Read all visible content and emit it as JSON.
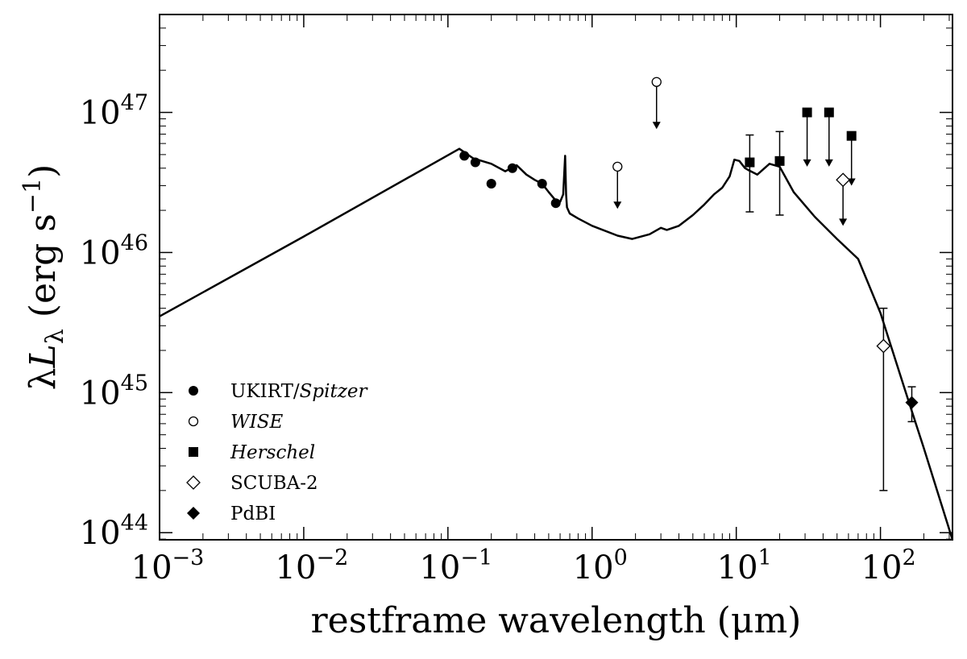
{
  "chart_data": {
    "type": "scatter",
    "title": "",
    "xlabel": "restframe wavelength (μm)",
    "ylabel": "λL_λ (erg s^-1)",
    "x_scale": "log",
    "y_scale": "log",
    "xlim": [
      0.001,
      316
    ],
    "ylim": [
      8.9e+43,
      5e+47
    ],
    "x_ticks": [
      {
        "base": "10",
        "exp": "-3",
        "value": 0.001
      },
      {
        "base": "10",
        "exp": "-2",
        "value": 0.01
      },
      {
        "base": "10",
        "exp": "-1",
        "value": 0.1
      },
      {
        "base": "10",
        "exp": "0",
        "value": 1
      },
      {
        "base": "10",
        "exp": "1",
        "value": 10
      },
      {
        "base": "10",
        "exp": "2",
        "value": 100
      }
    ],
    "y_ticks": [
      {
        "base": "10",
        "exp": "44",
        "value": 1e+44
      },
      {
        "base": "10",
        "exp": "45",
        "value": 1e+45
      },
      {
        "base": "10",
        "exp": "46",
        "value": 1e+46
      },
      {
        "base": "10",
        "exp": "47",
        "value": 1e+47
      }
    ],
    "grid": false,
    "legend_position": "lower-left",
    "legend": [
      {
        "label_prefix": "UKIRT/",
        "label_italic": "Spitzer",
        "marker": "filled-circle"
      },
      {
        "label_prefix": "",
        "label_italic": "WISE",
        "marker": "open-circle"
      },
      {
        "label_prefix": "",
        "label_italic": "Herschel",
        "marker": "filled-square"
      },
      {
        "label_prefix": "SCUBA-2",
        "label_italic": "",
        "marker": "open-diamond"
      },
      {
        "label_prefix": "PdBI",
        "label_italic": "",
        "marker": "filled-diamond"
      }
    ],
    "model_curve": {
      "x": [
        0.001,
        0.01,
        0.12,
        0.15,
        0.2,
        0.25,
        0.3,
        0.35,
        0.4,
        0.45,
        0.5,
        0.55,
        0.6,
        0.63,
        0.65,
        0.66,
        0.67,
        0.7,
        0.8,
        1.0,
        1.5,
        1.9,
        2.5,
        3.0,
        3.3,
        4.0,
        5.0,
        6.0,
        7.0,
        8.0,
        9.0,
        9.7,
        10.5,
        11.5,
        12.0,
        14.0,
        17.0,
        20.0,
        25.0,
        35.0,
        50.0,
        70.0,
        100.0,
        150.0,
        200.0,
        316.0
      ],
      "y": [
        3.5e+45,
        1.3e+46,
        5.5e+46,
        4.7e+46,
        4.3e+46,
        3.8e+46,
        4.2e+46,
        3.6e+46,
        3.3e+46,
        3.1e+46,
        2.7e+46,
        2.4e+46,
        2.3e+46,
        2.6e+46,
        4.9e+46,
        2.6e+46,
        2.1e+46,
        1.9e+46,
        1.75e+46,
        1.55e+46,
        1.32e+46,
        1.25e+46,
        1.35e+46,
        1.5e+46,
        1.45e+46,
        1.55e+46,
        1.85e+46,
        2.2e+46,
        2.6e+46,
        2.9e+46,
        3.5e+46,
        4.6e+46,
        4.5e+46,
        4e+46,
        3.9e+46,
        3.6e+46,
        4.3e+46,
        4.1e+46,
        2.7e+46,
        1.8e+46,
        1.25e+46,
        9e+45,
        3.7e+45,
        1e+45,
        4e+44,
        8.9e+43
      ]
    },
    "series": [
      {
        "name": "UKIRT/Spitzer",
        "marker": "filled-circle",
        "points": [
          {
            "x": 0.13,
            "y": 4.9e+46
          },
          {
            "x": 0.155,
            "y": 4.4e+46
          },
          {
            "x": 0.2,
            "y": 3.1e+46
          },
          {
            "x": 0.28,
            "y": 4e+46
          },
          {
            "x": 0.45,
            "y": 3.1e+46
          },
          {
            "x": 0.56,
            "y": 2.25e+46
          }
        ]
      },
      {
        "name": "WISE",
        "marker": "open-circle",
        "points": [
          {
            "x": 1.5,
            "y": 4.1e+46,
            "upper_limit": true,
            "arrow_to": 2.05e+46
          },
          {
            "x": 2.8,
            "y": 1.65e+47,
            "upper_limit": true,
            "arrow_to": 7.6e+46
          }
        ]
      },
      {
        "name": "Herschel",
        "marker": "filled-square",
        "points": [
          {
            "x": 12.4,
            "y": 4.4e+46,
            "err_low": 1.95e+46,
            "err_high": 6.9e+46
          },
          {
            "x": 20.0,
            "y": 4.5e+46,
            "err_low": 1.85e+46,
            "err_high": 7.3e+46
          },
          {
            "x": 31.0,
            "y": 1e+47,
            "upper_limit": true,
            "arrow_to": 4.1e+46
          },
          {
            "x": 44.0,
            "y": 1e+47,
            "upper_limit": true,
            "arrow_to": 4.1e+46
          },
          {
            "x": 63.0,
            "y": 6.8e+46,
            "upper_limit": true,
            "arrow_to": 3e+46
          }
        ]
      },
      {
        "name": "SCUBA-2",
        "marker": "open-diamond",
        "points": [
          {
            "x": 55.0,
            "y": 3.3e+46,
            "upper_limit": true,
            "arrow_to": 1.55e+46
          },
          {
            "x": 105.0,
            "y": 2.15e+45,
            "err_low": 2e+44,
            "err_high": 4e+45
          }
        ]
      },
      {
        "name": "PdBI",
        "marker": "filled-diamond",
        "points": [
          {
            "x": 165.0,
            "y": 8.5e+44,
            "err_low": 6.2e+44,
            "err_high": 1.1e+45
          }
        ]
      }
    ]
  }
}
